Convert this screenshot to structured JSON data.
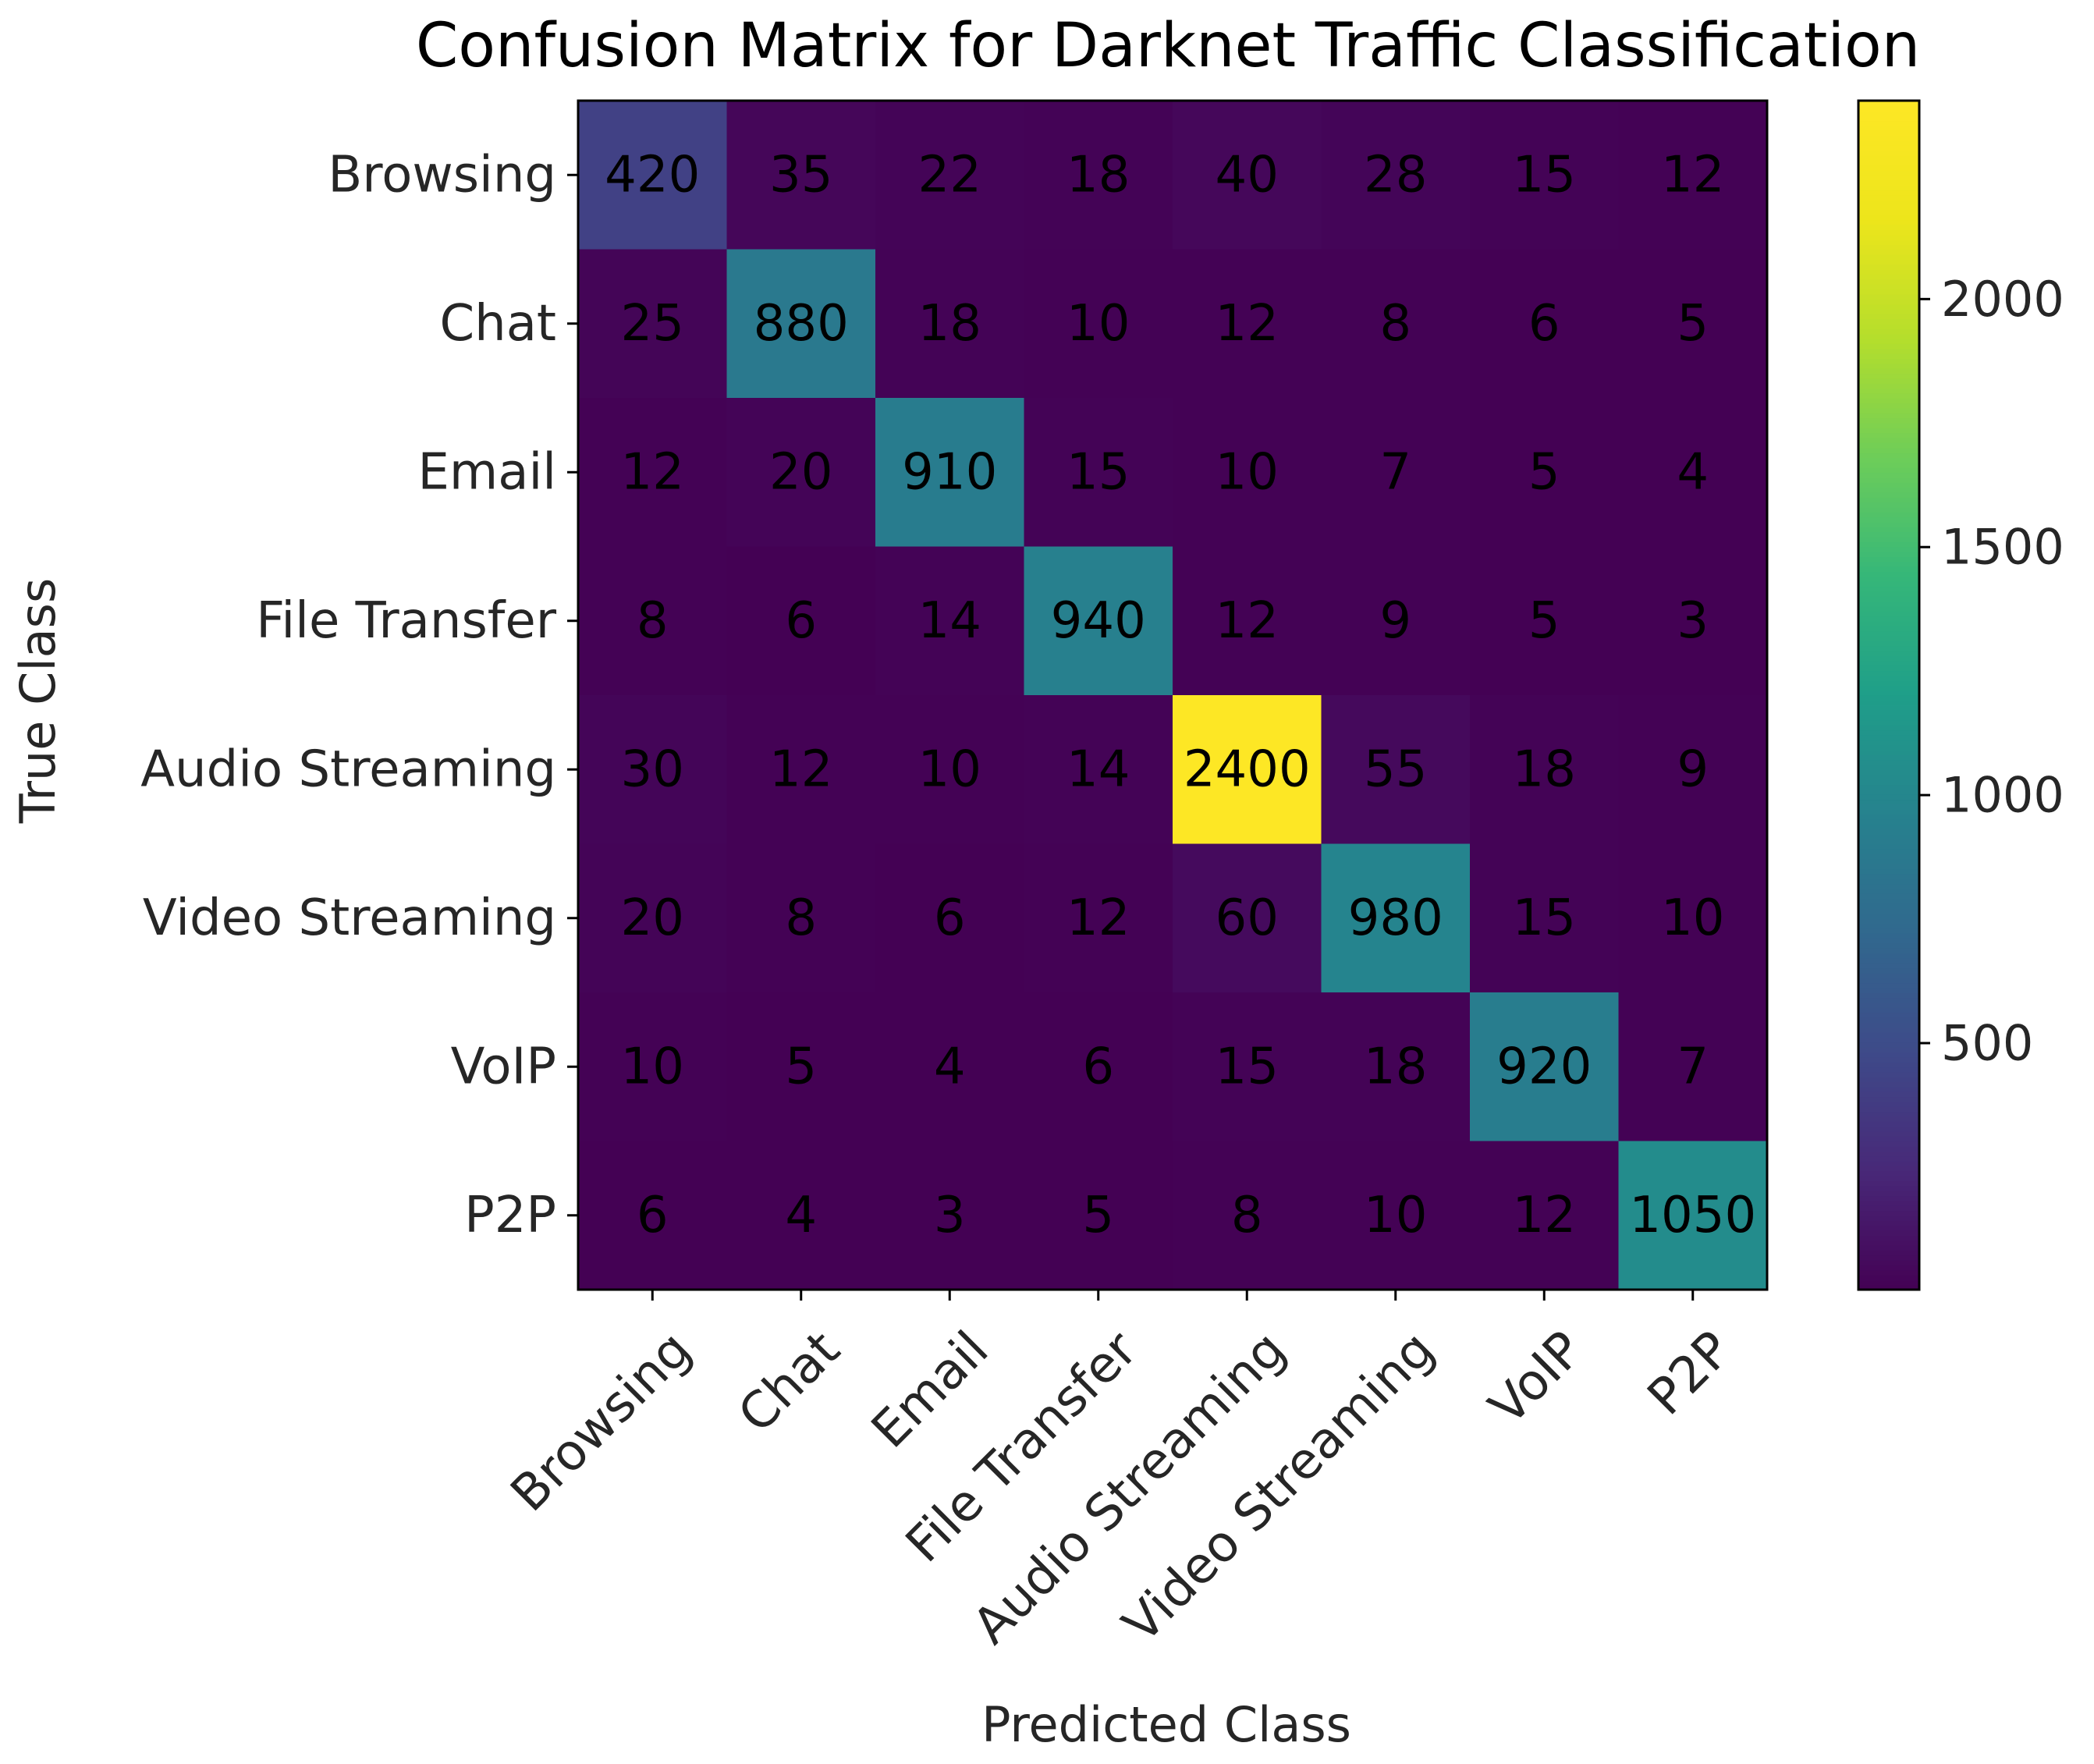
{
  "chart_data": {
    "type": "heatmap",
    "title": "Confusion Matrix for Darknet Traffic Classification",
    "xlabel": "Predicted Class",
    "ylabel": "True Class",
    "row_labels": [
      "Browsing",
      "Chat",
      "Email",
      "File Transfer",
      "Audio Streaming",
      "Video Streaming",
      "VoIP",
      "P2P"
    ],
    "col_labels": [
      "Browsing",
      "Chat",
      "Email",
      "File Transfer",
      "Audio Streaming",
      "Video Streaming",
      "VoIP",
      "P2P"
    ],
    "values": [
      [
        420,
        35,
        22,
        18,
        40,
        28,
        15,
        12
      ],
      [
        25,
        880,
        18,
        10,
        12,
        8,
        6,
        5
      ],
      [
        12,
        20,
        910,
        15,
        10,
        7,
        5,
        4
      ],
      [
        8,
        6,
        14,
        940,
        12,
        9,
        5,
        3
      ],
      [
        30,
        12,
        10,
        14,
        2400,
        55,
        18,
        9
      ],
      [
        20,
        8,
        6,
        12,
        60,
        980,
        15,
        10
      ],
      [
        10,
        5,
        4,
        6,
        15,
        18,
        920,
        7
      ],
      [
        6,
        4,
        3,
        5,
        8,
        10,
        12,
        1050
      ]
    ],
    "colormap": "viridis",
    "color_range": [
      3,
      2400
    ],
    "colorbar_ticks": [
      500,
      1000,
      1500,
      2000
    ],
    "value_text_color": "#000000",
    "grid": false,
    "legend": "colorbar-right"
  }
}
